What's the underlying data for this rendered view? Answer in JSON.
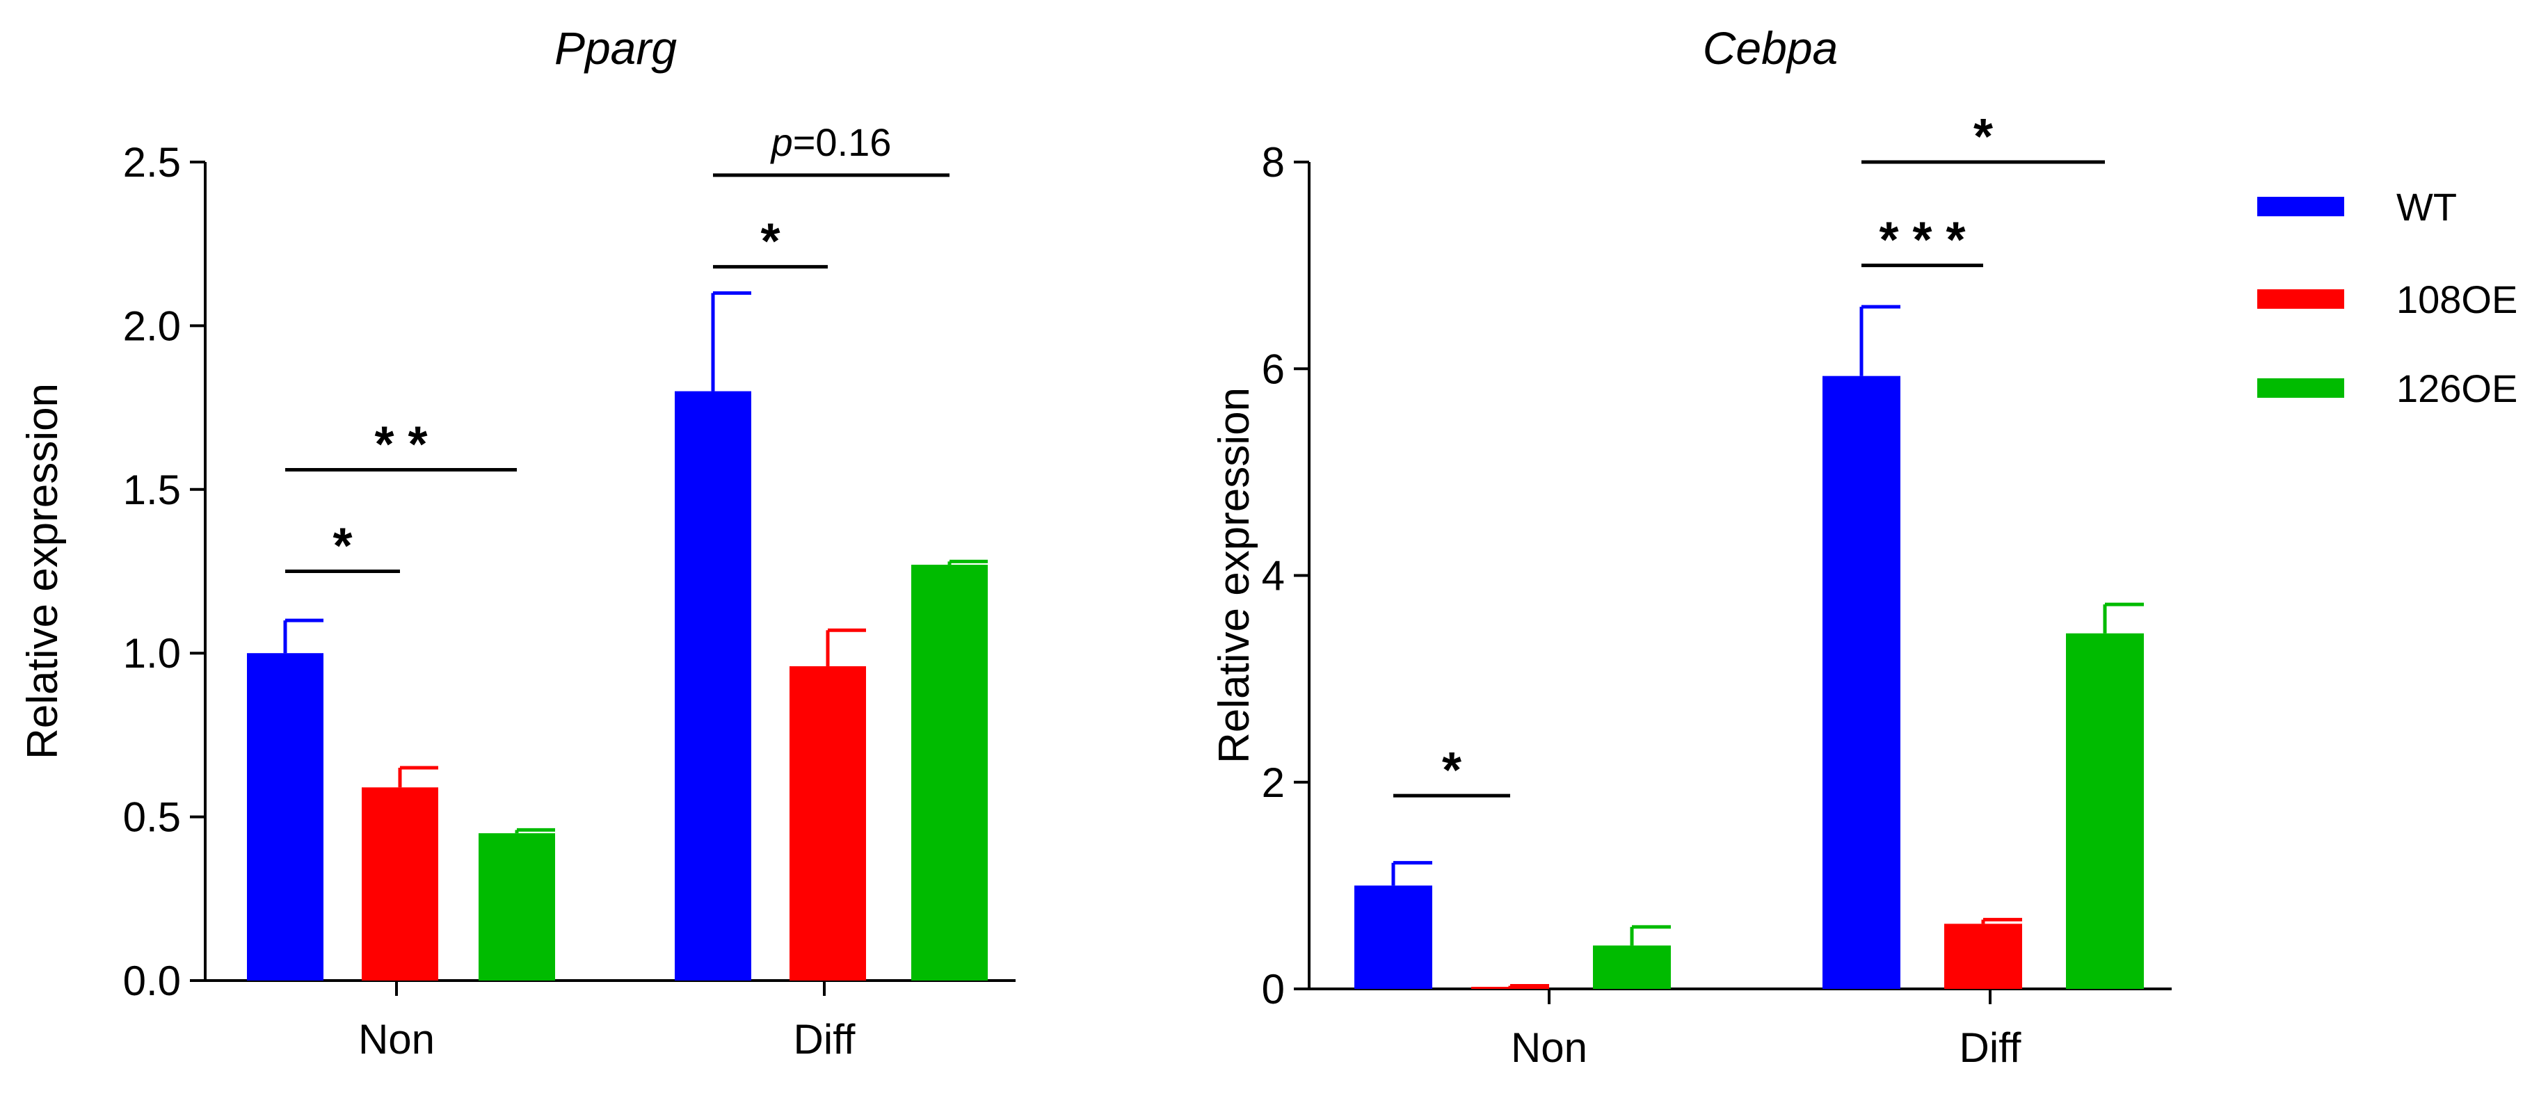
{
  "colors": {
    "WT": "#0000FF",
    "108OE": "#FF0000",
    "126OE": "#00BB00"
  },
  "legend": [
    {
      "name": "WT",
      "color": "#0000FF"
    },
    {
      "name": "108OE",
      "color": "#FF0000"
    },
    {
      "name": "126OE",
      "color": "#00BB00"
    }
  ],
  "chart_data": [
    {
      "type": "bar",
      "title": "Pparg",
      "ylabel": "Relative expression",
      "xlabel": "",
      "categories": [
        "Non",
        "Diff"
      ],
      "ylim": [
        0,
        2.5
      ],
      "yticks": [
        0.0,
        0.5,
        1.0,
        1.5,
        2.0,
        2.5
      ],
      "ytick_labels": [
        "0.0",
        "0.5",
        "1.0",
        "1.5",
        "2.0",
        "2.5"
      ],
      "series": [
        {
          "name": "WT",
          "values": [
            1.0,
            1.8
          ],
          "errors": [
            0.1,
            0.3
          ]
        },
        {
          "name": "108OE",
          "values": [
            0.59,
            0.96
          ],
          "errors": [
            0.06,
            0.11
          ]
        },
        {
          "name": "126OE",
          "values": [
            0.45,
            1.27
          ],
          "errors": [
            0.01,
            0.01
          ]
        }
      ],
      "annotations": [
        {
          "category": "Non",
          "from": "WT",
          "to": "108OE",
          "y": 1.25,
          "text": "*"
        },
        {
          "category": "Non",
          "from": "WT",
          "to": "126OE",
          "y": 1.56,
          "text": "* *"
        },
        {
          "category": "Diff",
          "from": "WT",
          "to": "108OE",
          "y": 2.18,
          "text": "*"
        },
        {
          "category": "Diff",
          "from": "WT",
          "to": "126OE",
          "y": 2.46,
          "text": "p=0.16"
        }
      ]
    },
    {
      "type": "bar",
      "title": "Cebpa",
      "ylabel": "Relative expression",
      "xlabel": "",
      "categories": [
        "Non",
        "Diff"
      ],
      "ylim": [
        0,
        8
      ],
      "yticks": [
        0,
        2,
        4,
        6,
        8
      ],
      "ytick_labels": [
        "0",
        "2",
        "4",
        "6",
        "8"
      ],
      "series": [
        {
          "name": "WT",
          "values": [
            1.0,
            5.93
          ],
          "errors": [
            0.22,
            0.67
          ]
        },
        {
          "name": "108OE",
          "values": [
            0.02,
            0.63
          ],
          "errors": [
            0.01,
            0.04
          ]
        },
        {
          "name": "126OE",
          "values": [
            0.42,
            3.44
          ],
          "errors": [
            0.18,
            0.28
          ]
        }
      ],
      "annotations": [
        {
          "category": "Non",
          "from": "WT",
          "to": "108OE",
          "y": 1.87,
          "text": "*"
        },
        {
          "category": "Diff",
          "from": "WT",
          "to": "108OE",
          "y": 7.0,
          "text": "* * *"
        },
        {
          "category": "Diff",
          "from": "WT",
          "to": "126OE",
          "y": 8.0,
          "text": "*"
        }
      ]
    }
  ]
}
